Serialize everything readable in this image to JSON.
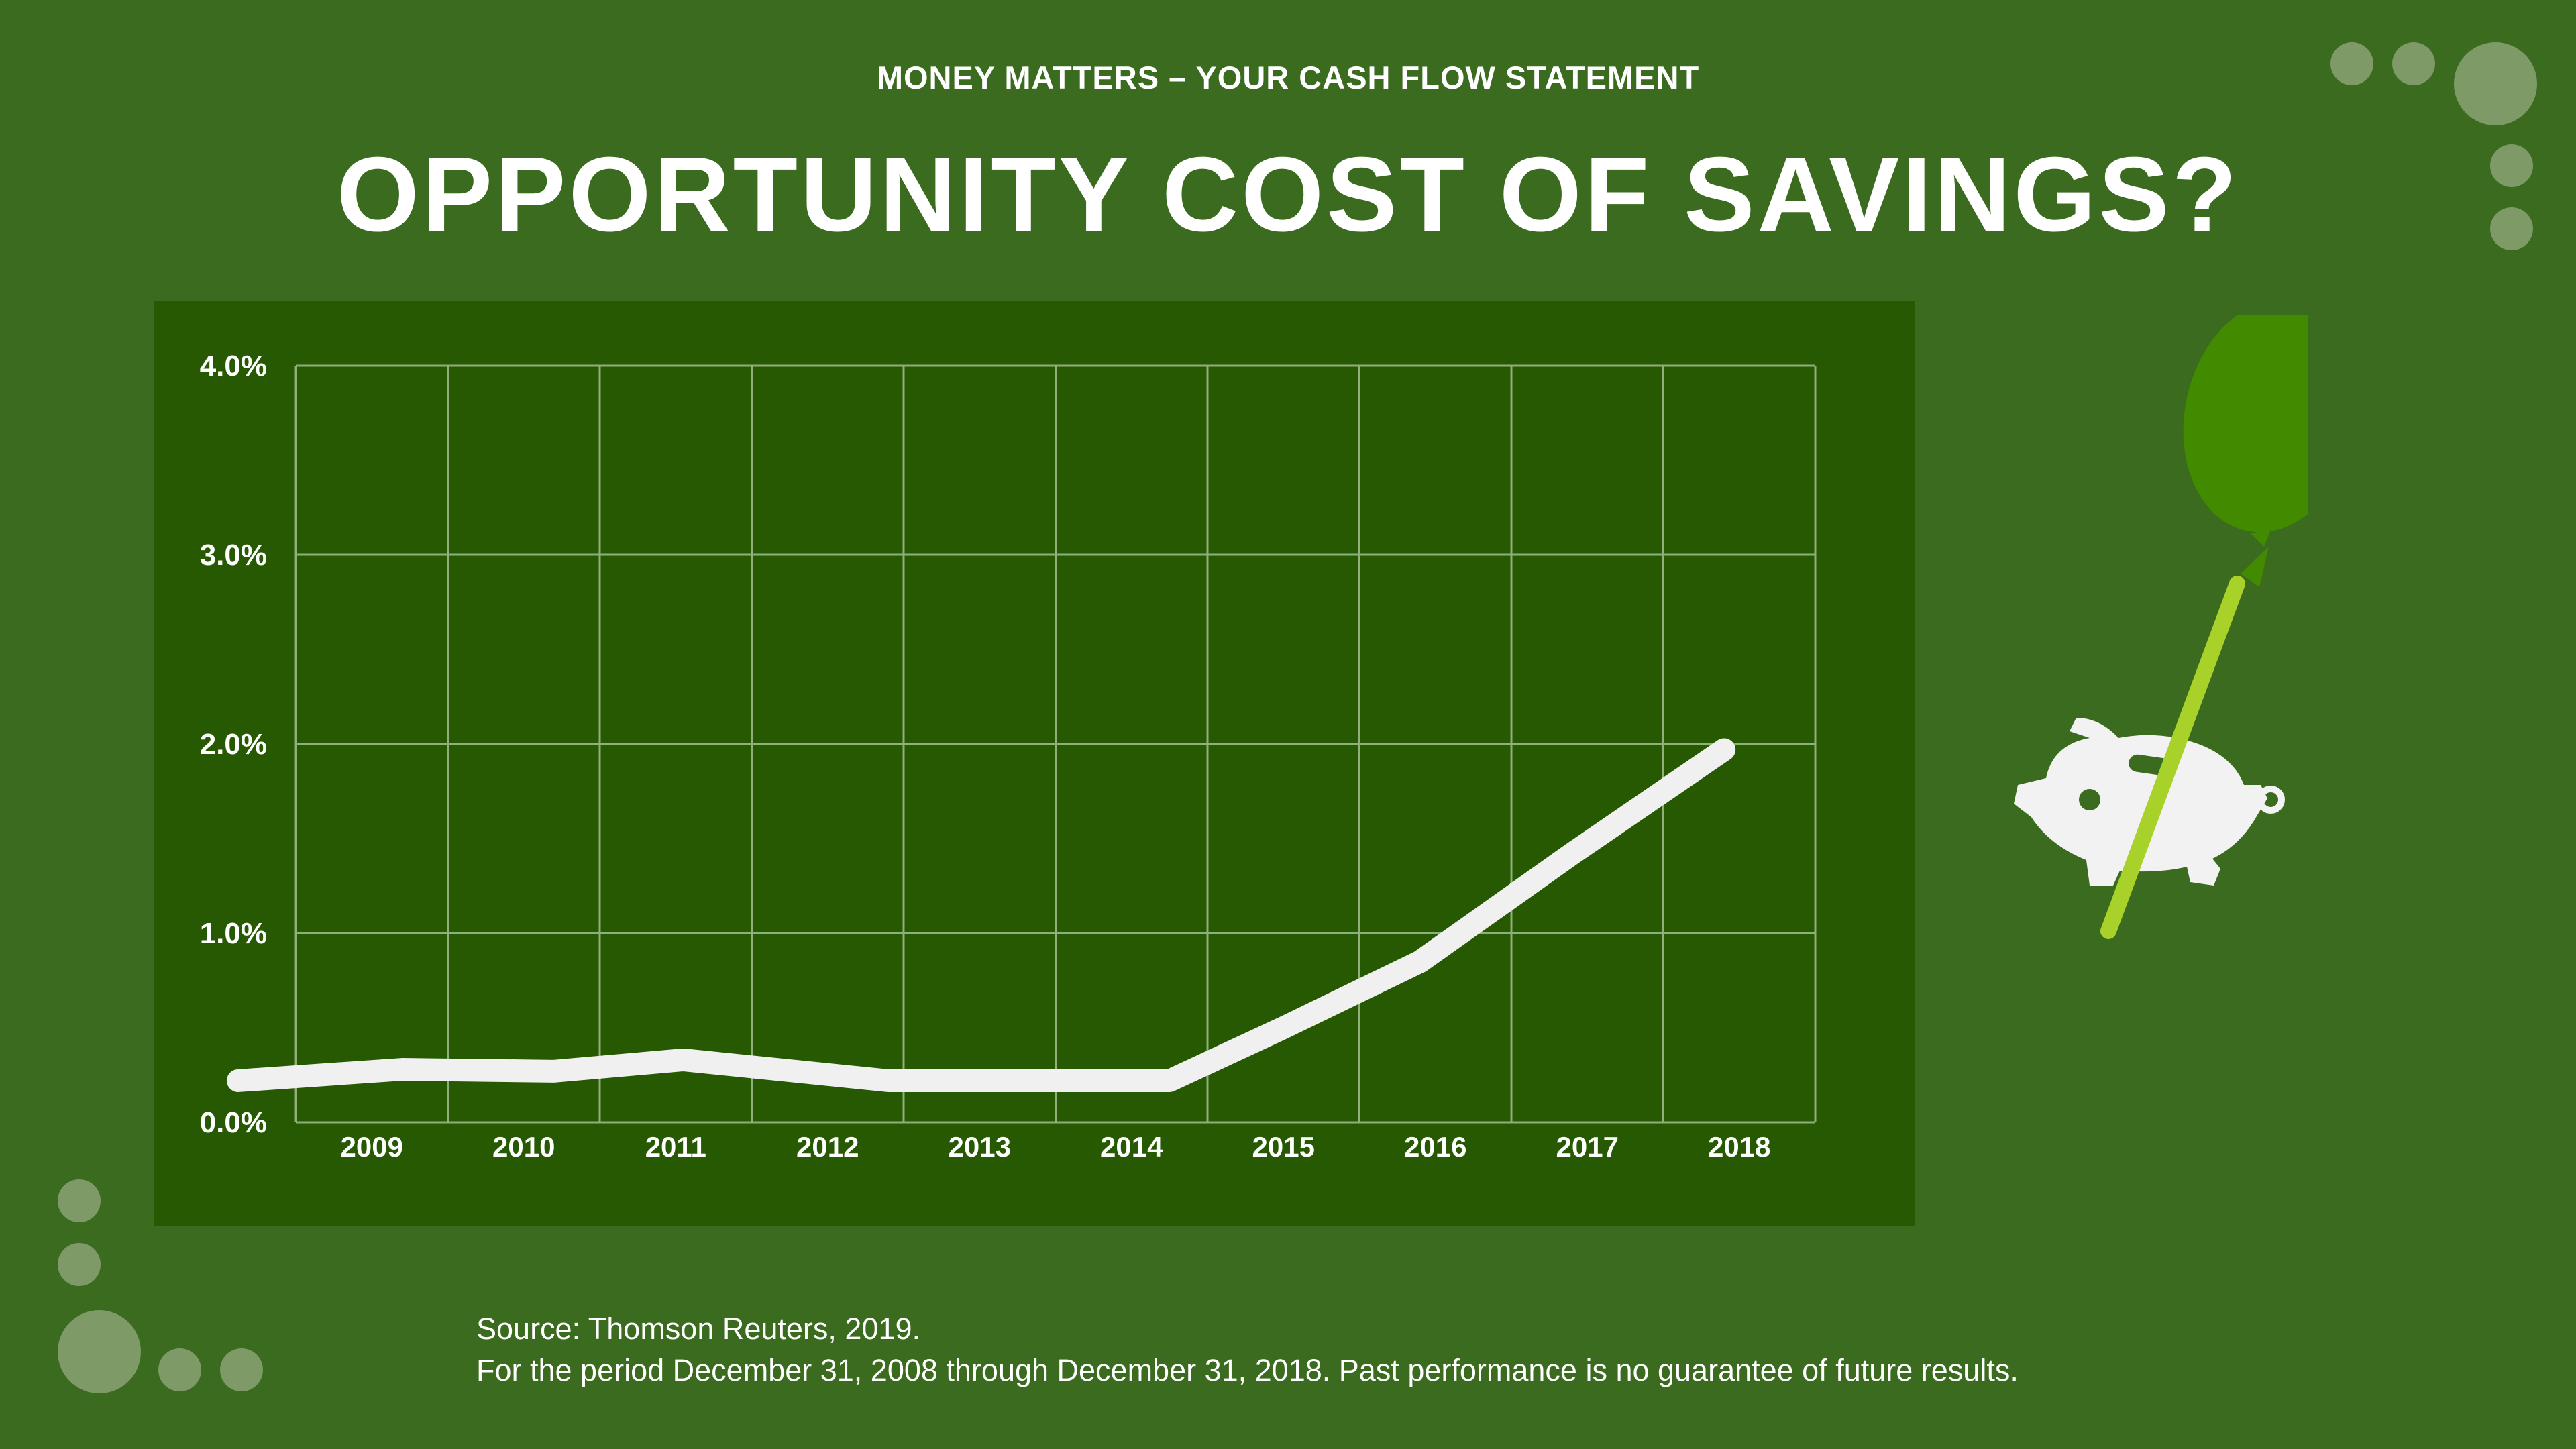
{
  "header": {
    "kicker": "MONEY MATTERS – YOUR CASH FLOW STATEMENT",
    "title": "OPPORTUNITY COST OF SAVINGS?"
  },
  "chart_data": {
    "type": "line",
    "title": "",
    "xlabel": "",
    "ylabel": "",
    "categories": [
      "2009",
      "2010",
      "2011",
      "2012",
      "2013",
      "2014",
      "2015",
      "2016",
      "2017",
      "2018"
    ],
    "ylim": [
      0,
      4
    ],
    "y_ticks": [
      "0.0%",
      "1.0%",
      "2.0%",
      "3.0%",
      "4.0%"
    ],
    "grid": true,
    "series": [
      {
        "x": [
          2008.12,
          2009.2,
          2010.2,
          2011.05,
          2012.4,
          2013.4,
          2014.25,
          2015.0,
          2015.9,
          2016.9,
          2017.9
        ],
        "values": [
          0.22,
          0.28,
          0.27,
          0.33,
          0.22,
          0.22,
          0.22,
          0.5,
          0.85,
          1.42,
          1.97
        ]
      }
    ]
  },
  "colors": {
    "background": "#3b6b1f",
    "panel": "#265901",
    "line": "#f0f0f0",
    "balloon": "#428a00",
    "string": "#a8d22a",
    "pig": "#f2f2f2"
  },
  "icons": {
    "mascot": "piggy-bank-with-balloon-icon",
    "decor": "decorative-circle"
  },
  "footer": {
    "source": "Source: Thomson Reuters, 2019.",
    "disclaimer": "For the period December 31, 2008 through December 31, 2018. Past performance is no guarantee of future results."
  }
}
